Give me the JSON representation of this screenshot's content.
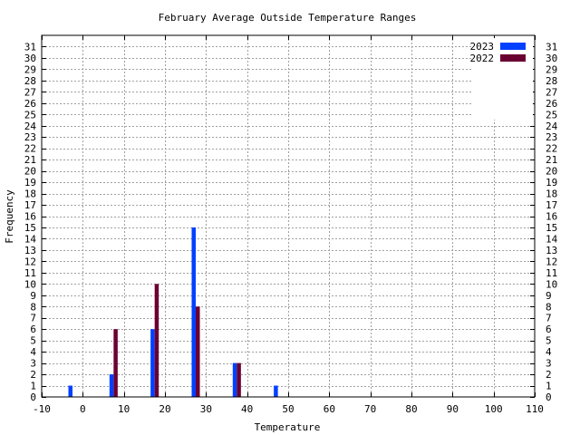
{
  "chart_data": {
    "type": "bar",
    "title": "February Average Outside Temperature Ranges",
    "xlabel": "Temperature",
    "ylabel": "Frequency",
    "xlim": [
      -10,
      110
    ],
    "ylim": [
      0,
      32
    ],
    "x_ticks": [
      -10,
      0,
      10,
      20,
      30,
      40,
      50,
      60,
      70,
      80,
      90,
      100,
      110
    ],
    "y_ticks": [
      0,
      1,
      2,
      3,
      4,
      5,
      6,
      7,
      8,
      9,
      10,
      11,
      12,
      13,
      14,
      15,
      16,
      17,
      18,
      19,
      20,
      21,
      22,
      23,
      24,
      25,
      26,
      27,
      28,
      29,
      30,
      31
    ],
    "grid": true,
    "legend_position": "top-right",
    "series": [
      {
        "name": "2023",
        "color": "#0040ff",
        "points": [
          {
            "x": -3,
            "y": 1
          },
          {
            "x": 7,
            "y": 2
          },
          {
            "x": 17,
            "y": 6
          },
          {
            "x": 27,
            "y": 15
          },
          {
            "x": 37,
            "y": 3
          },
          {
            "x": 47,
            "y": 1
          }
        ]
      },
      {
        "name": "2022",
        "color": "#6a0032",
        "points": [
          {
            "x": 8,
            "y": 6
          },
          {
            "x": 18,
            "y": 10
          },
          {
            "x": 28,
            "y": 8
          },
          {
            "x": 38,
            "y": 3
          }
        ]
      }
    ]
  }
}
